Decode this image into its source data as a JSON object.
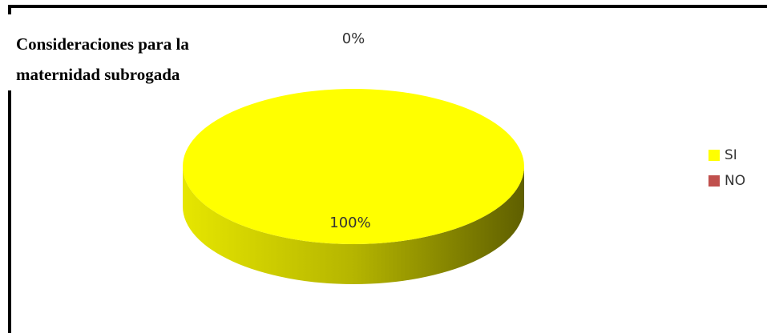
{
  "chart_data": {
    "type": "pie",
    "title": "Consideraciones para la maternidad subrogada",
    "series": [
      {
        "name": "SI",
        "value": 100,
        "label": "100%",
        "color": "#FFFF00"
      },
      {
        "name": "NO",
        "value": 0,
        "label": "0%",
        "color": "#C0504D"
      }
    ],
    "legend_position": "right",
    "style": "3d"
  }
}
